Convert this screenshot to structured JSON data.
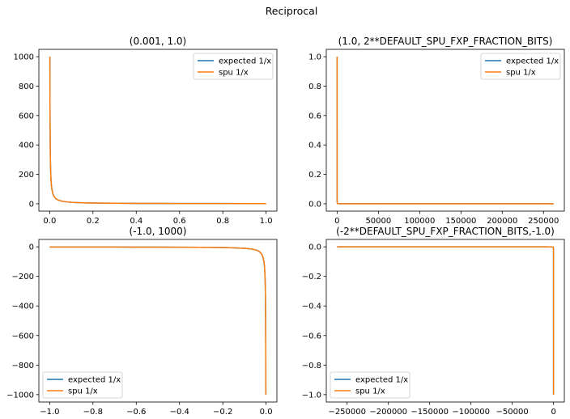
{
  "figure": {
    "suptitle": "Reciprocal"
  },
  "chart_data": [
    {
      "type": "line",
      "title": "(0.001, 1.0)",
      "xlim": [
        -0.05,
        1.05
      ],
      "ylim": [
        -50,
        1050
      ],
      "xticks": [
        0.0,
        0.2,
        0.4,
        0.6,
        0.8,
        1.0
      ],
      "xtick_labels": [
        "0.0",
        "0.2",
        "0.4",
        "0.6",
        "0.8",
        "1.0"
      ],
      "yticks": [
        0,
        200,
        400,
        600,
        800,
        1000
      ],
      "ytick_labels": [
        "0",
        "200",
        "400",
        "600",
        "800",
        "1000"
      ],
      "legend": "top-right",
      "series": [
        {
          "name": "expected 1/x",
          "color": "#1f77b4",
          "x": [
            0.001,
            0.0015,
            0.002,
            0.003,
            0.004,
            0.005,
            0.006,
            0.008,
            0.01,
            0.015,
            0.02,
            0.03,
            0.04,
            0.05,
            0.07,
            0.1,
            0.15,
            0.2,
            0.3,
            0.4,
            0.5,
            0.6,
            0.7,
            0.8,
            0.9,
            1.0
          ],
          "y": [
            1000,
            666.7,
            500,
            333.3,
            250,
            200,
            166.7,
            125,
            100,
            66.7,
            50,
            33.3,
            25,
            20,
            14.3,
            10,
            6.7,
            5,
            3.3,
            2.5,
            2,
            1.7,
            1.4,
            1.25,
            1.1,
            1
          ]
        },
        {
          "name": "spu 1/x",
          "color": "#ff7f0e",
          "x": [
            0.001,
            0.0015,
            0.002,
            0.003,
            0.004,
            0.005,
            0.006,
            0.008,
            0.01,
            0.015,
            0.02,
            0.03,
            0.04,
            0.05,
            0.07,
            0.1,
            0.15,
            0.2,
            0.3,
            0.4,
            0.5,
            0.6,
            0.7,
            0.8,
            0.9,
            1.0
          ],
          "y": [
            1000,
            666.7,
            500,
            333.3,
            250,
            200,
            166.7,
            125,
            100,
            66.7,
            50,
            33.3,
            25,
            20,
            14.3,
            10,
            6.7,
            5,
            3.3,
            2.5,
            2,
            1.7,
            1.4,
            1.25,
            1.1,
            1
          ]
        }
      ]
    },
    {
      "type": "line",
      "title": "(1.0, 2**DEFAULT_SPU_FXP_FRACTION_BITS)",
      "xlim": [
        -13106,
        275232
      ],
      "ylim": [
        -0.05,
        1.05
      ],
      "xticks": [
        0,
        50000,
        100000,
        150000,
        200000,
        250000
      ],
      "xtick_labels": [
        "0",
        "50000",
        "100000",
        "150000",
        "200000",
        "250000"
      ],
      "yticks": [
        0.0,
        0.2,
        0.4,
        0.6,
        0.8,
        1.0
      ],
      "ytick_labels": [
        "0.0",
        "0.2",
        "0.4",
        "0.6",
        "0.8",
        "1.0"
      ],
      "legend": "top-right",
      "series": [
        {
          "name": "expected 1/x",
          "color": "#1f77b4",
          "x": [
            1,
            1.5,
            2,
            3,
            5,
            10,
            30,
            100,
            300,
            1000,
            3000,
            10000,
            50000,
            100000,
            150000,
            200000,
            262144
          ],
          "y": [
            1,
            0.667,
            0.5,
            0.333,
            0.2,
            0.1,
            0.033,
            0.01,
            0.0033,
            0.001,
            0.00033,
            0.0001,
            2e-05,
            1e-05,
            6.7e-06,
            5e-06,
            3.8e-06
          ]
        },
        {
          "name": "spu 1/x",
          "color": "#ff7f0e",
          "x": [
            1,
            1.5,
            2,
            3,
            5,
            10,
            30,
            100,
            300,
            1000,
            3000,
            10000,
            50000,
            100000,
            150000,
            200000,
            262144
          ],
          "y": [
            1,
            0.667,
            0.5,
            0.333,
            0.2,
            0.1,
            0.033,
            0.01,
            0.0033,
            0.001,
            0.00033,
            0.0001,
            2e-05,
            1e-05,
            6.7e-06,
            5e-06,
            3.8e-06
          ]
        }
      ]
    },
    {
      "type": "line",
      "title": "(-1.0, 1000)",
      "xlim": [
        -1.05,
        0.05
      ],
      "ylim": [
        -1050,
        50
      ],
      "xticks": [
        -1.0,
        -0.8,
        -0.6,
        -0.4,
        -0.2,
        0.0
      ],
      "xtick_labels": [
        "−1.0",
        "−0.8",
        "−0.6",
        "−0.4",
        "−0.2",
        "0.0"
      ],
      "yticks": [
        -1000,
        -800,
        -600,
        -400,
        -200,
        0
      ],
      "ytick_labels": [
        "−1000",
        "−800",
        "−600",
        "−400",
        "−200",
        "0"
      ],
      "legend": "bottom-left",
      "series": [
        {
          "name": "expected 1/x",
          "color": "#1f77b4",
          "x": [
            -1.0,
            -0.9,
            -0.8,
            -0.7,
            -0.6,
            -0.5,
            -0.4,
            -0.3,
            -0.2,
            -0.15,
            -0.1,
            -0.07,
            -0.05,
            -0.04,
            -0.03,
            -0.02,
            -0.015,
            -0.01,
            -0.008,
            -0.006,
            -0.005,
            -0.004,
            -0.003,
            -0.002,
            -0.0015,
            -0.001
          ],
          "y": [
            -1,
            -1.1,
            -1.25,
            -1.4,
            -1.7,
            -2,
            -2.5,
            -3.3,
            -5,
            -6.7,
            -10,
            -14.3,
            -20,
            -25,
            -33.3,
            -50,
            -66.7,
            -100,
            -125,
            -166.7,
            -200,
            -250,
            -333.3,
            -500,
            -666.7,
            -1000
          ]
        },
        {
          "name": "spu 1/x",
          "color": "#ff7f0e",
          "x": [
            -1.0,
            -0.9,
            -0.8,
            -0.7,
            -0.6,
            -0.5,
            -0.4,
            -0.3,
            -0.2,
            -0.15,
            -0.1,
            -0.07,
            -0.05,
            -0.04,
            -0.03,
            -0.02,
            -0.015,
            -0.01,
            -0.008,
            -0.006,
            -0.005,
            -0.004,
            -0.003,
            -0.002,
            -0.0015,
            -0.001
          ],
          "y": [
            -1,
            -1.1,
            -1.25,
            -1.4,
            -1.7,
            -2,
            -2.5,
            -3.3,
            -5,
            -6.7,
            -10,
            -14.3,
            -20,
            -25,
            -33.3,
            -50,
            -66.7,
            -100,
            -125,
            -166.7,
            -200,
            -250,
            -333.3,
            -500,
            -666.7,
            -1000
          ]
        }
      ]
    },
    {
      "type": "line",
      "title": "(-2**DEFAULT_SPU_FXP_FRACTION_BITS,-1.0)",
      "xlim": [
        -275232,
        13106
      ],
      "ylim": [
        -1.05,
        0.05
      ],
      "xticks": [
        -250000,
        -200000,
        -150000,
        -100000,
        -50000,
        0
      ],
      "xtick_labels": [
        "−250000",
        "−200000",
        "−150000",
        "−100000",
        "−50000",
        "0"
      ],
      "yticks": [
        -1.0,
        -0.8,
        -0.6,
        -0.4,
        -0.2,
        0.0
      ],
      "ytick_labels": [
        "−1.0",
        "−0.8",
        "−0.6",
        "−0.4",
        "−0.2",
        "0.0"
      ],
      "legend": "bottom-left",
      "series": [
        {
          "name": "expected 1/x",
          "color": "#1f77b4",
          "x": [
            -262144,
            -200000,
            -150000,
            -100000,
            -50000,
            -10000,
            -3000,
            -1000,
            -300,
            -100,
            -30,
            -10,
            -5,
            -3,
            -2,
            -1.5,
            -1
          ],
          "y": [
            -3.8e-06,
            -5e-06,
            -6.7e-06,
            -1e-05,
            -2e-05,
            -0.0001,
            -0.00033,
            -0.001,
            -0.0033,
            -0.01,
            -0.033,
            -0.1,
            -0.2,
            -0.333,
            -0.5,
            -0.667,
            -1
          ]
        },
        {
          "name": "spu 1/x",
          "color": "#ff7f0e",
          "x": [
            -262144,
            -200000,
            -150000,
            -100000,
            -50000,
            -10000,
            -3000,
            -1000,
            -300,
            -100,
            -30,
            -10,
            -5,
            -3,
            -2,
            -1.5,
            -1
          ],
          "y": [
            -3.8e-06,
            -5e-06,
            -6.7e-06,
            -1e-05,
            -2e-05,
            -0.0001,
            -0.00033,
            -0.001,
            -0.0033,
            -0.01,
            -0.033,
            -0.1,
            -0.2,
            -0.333,
            -0.5,
            -0.667,
            -1
          ]
        }
      ]
    }
  ]
}
